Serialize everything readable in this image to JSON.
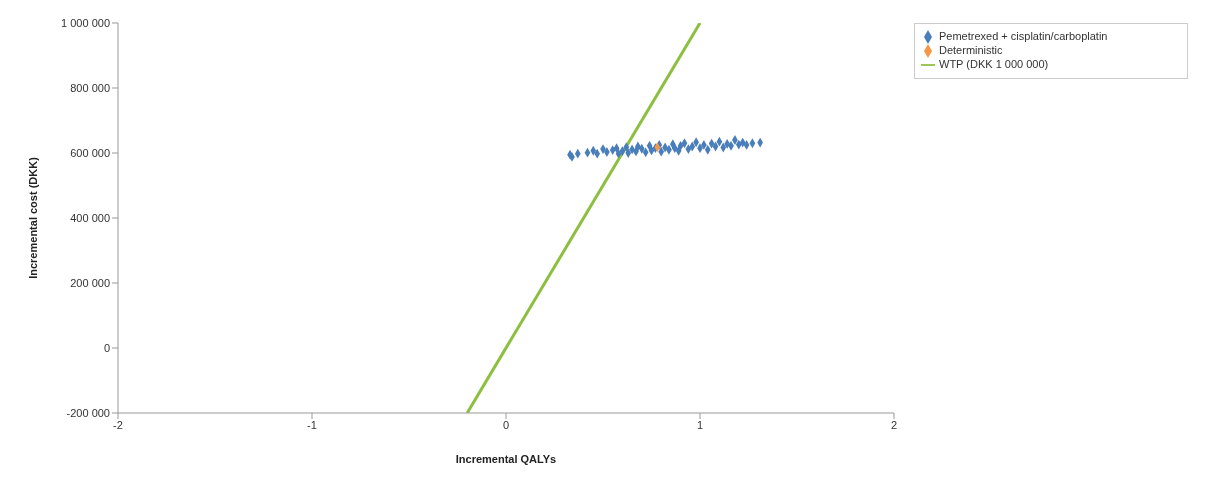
{
  "chart_data": {
    "type": "scatter",
    "xlabel": "Incremental QALYs",
    "ylabel": "Incremental cost (DKK)",
    "xlim": [
      -2,
      2
    ],
    "xticks": [
      -2,
      -1,
      0,
      1,
      2
    ],
    "ylim": [
      -200000,
      1000000
    ],
    "yticks": [
      {
        "value": -200000,
        "label": "-200 000"
      },
      {
        "value": 0,
        "label": "0"
      },
      {
        "value": 200000,
        "label": "200 000"
      },
      {
        "value": 400000,
        "label": "400 000"
      },
      {
        "value": 600000,
        "label": "600 000"
      },
      {
        "value": 800000,
        "label": "800 000"
      },
      {
        "value": 1000000,
        "label": "1 000 000"
      }
    ],
    "grid": false,
    "legend": "top right",
    "series": [
      {
        "name": "Pemetrexed + cisplatin/carboplatin",
        "color": "#4a7ebb",
        "marker": "diamond",
        "x": [
          0.33,
          0.34,
          0.37,
          0.42,
          0.45,
          0.47,
          0.5,
          0.52,
          0.55,
          0.57,
          0.58,
          0.6,
          0.62,
          0.63,
          0.65,
          0.67,
          0.68,
          0.7,
          0.72,
          0.74,
          0.75,
          0.77,
          0.79,
          0.8,
          0.82,
          0.84,
          0.86,
          0.87,
          0.89,
          0.9,
          0.92,
          0.94,
          0.96,
          0.98,
          1.0,
          1.02,
          1.04,
          1.06,
          1.08,
          1.1,
          1.12,
          1.14,
          1.16,
          1.18,
          1.2,
          1.22,
          1.24,
          1.27,
          1.31
        ],
        "values": [
          595000,
          588000,
          598000,
          601000,
          607000,
          598000,
          612000,
          603000,
          609000,
          615000,
          598000,
          606000,
          618000,
          600000,
          611000,
          605000,
          620000,
          613000,
          602000,
          622000,
          608000,
          615000,
          625000,
          604000,
          617000,
          610000,
          627000,
          615000,
          607000,
          622000,
          630000,
          612000,
          620000,
          633000,
          615000,
          625000,
          610000,
          629000,
          620000,
          635000,
          617000,
          628000,
          622000,
          640000,
          626000,
          632000,
          625000,
          630000,
          632000
        ]
      },
      {
        "name": "Deterministic",
        "color": "#f79646",
        "marker": "diamond",
        "x": [
          0.78
        ],
        "values": [
          618000
        ]
      },
      {
        "name": "WTP (DKK 1 000 000)",
        "type": "line",
        "color": "#8cbf3f",
        "line_style": "solid",
        "marker": "none",
        "x": [
          -0.2,
          1
        ],
        "values": [
          -200000,
          1000000
        ]
      }
    ]
  }
}
